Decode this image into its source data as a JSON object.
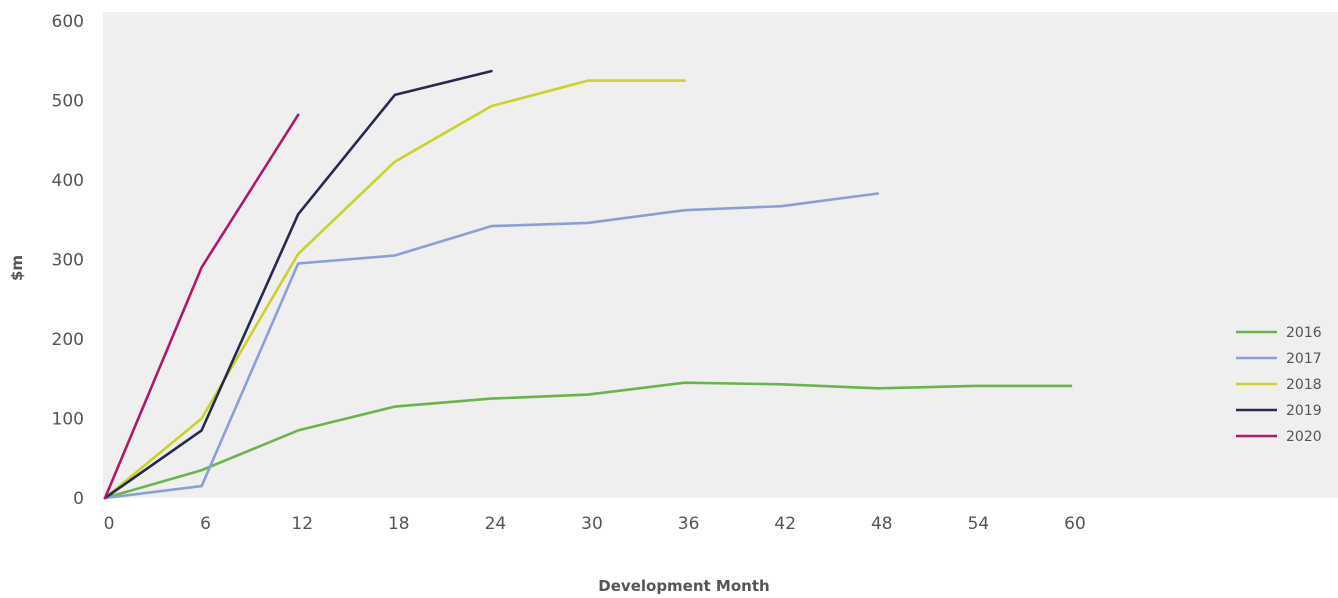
{
  "chart_data": {
    "type": "line",
    "title": "",
    "xlabel": "Development Month",
    "ylabel": "$m",
    "x_ticks": [
      "0",
      "6",
      "12",
      "18",
      "24",
      "30",
      "36",
      "42",
      "48",
      "54",
      "60"
    ],
    "y_ticks": [
      "0",
      "100",
      "200",
      "300",
      "400",
      "500",
      "600"
    ],
    "xlim": [
      0,
      60
    ],
    "ylim": [
      0,
      600
    ],
    "grid": false,
    "legend_position": "right",
    "background": "#efefef",
    "series": [
      {
        "name": "2016",
        "color": "#6ab54a",
        "x": [
          0,
          6,
          12,
          18,
          24,
          30,
          36,
          42,
          48,
          54,
          60
        ],
        "y": [
          0,
          35,
          85,
          115,
          125,
          130,
          145,
          143,
          138,
          141,
          141
        ]
      },
      {
        "name": "2017",
        "color": "#8a9fd6",
        "x": [
          0,
          6,
          12,
          18,
          24,
          30,
          36,
          42,
          48
        ],
        "y": [
          0,
          15,
          295,
          305,
          342,
          346,
          362,
          367,
          383
        ]
      },
      {
        "name": "2018",
        "color": "#cbd225",
        "x": [
          0,
          6,
          12,
          18,
          24,
          30,
          36
        ],
        "y": [
          0,
          100,
          307,
          423,
          493,
          525,
          525
        ]
      },
      {
        "name": "2019",
        "color": "#252a4f",
        "x": [
          0,
          6,
          12,
          18,
          24
        ],
        "y": [
          0,
          85,
          357,
          507,
          537
        ]
      },
      {
        "name": "2020",
        "color": "#b0186e",
        "x": [
          0,
          6,
          12
        ],
        "y": [
          0,
          290,
          482
        ]
      }
    ]
  }
}
